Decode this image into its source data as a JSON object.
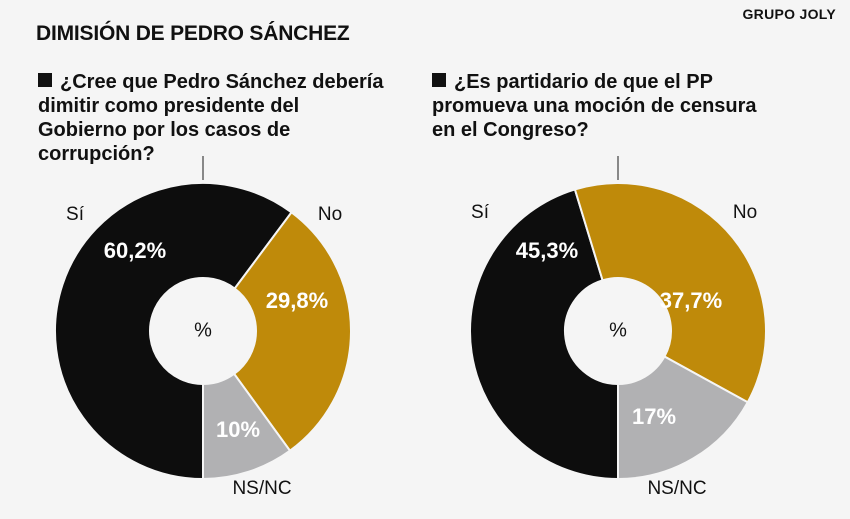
{
  "source": "GRUPO JOLY",
  "title": "DIMISIÓN DE PEDRO SÁNCHEZ",
  "colors": {
    "si": "#0d0d0d",
    "no": "#bf8a0a",
    "nsnc": "#b1b1b3",
    "center": "#f5f5f5"
  },
  "chart_data": [
    {
      "type": "pie",
      "question": "¿Cree que Pedro Sánchez debería dimitir como presidente del Gobierno por los casos de corrupción?",
      "center_label": "%",
      "slices": [
        {
          "category": "Sí",
          "value": 60.2,
          "label": "60,2%",
          "color": "#0d0d0d"
        },
        {
          "category": "No",
          "value": 29.8,
          "label": "29,8%",
          "color": "#bf8a0a"
        },
        {
          "category": "NS/NC",
          "value": 10,
          "label": "10%",
          "color": "#b1b1b3"
        }
      ]
    },
    {
      "type": "pie",
      "question": "¿Es partidario de que el PP promueva una moción de censura en el Congreso?",
      "center_label": "%",
      "slices": [
        {
          "category": "Sí",
          "value": 45.3,
          "label": "45,3%",
          "color": "#0d0d0d"
        },
        {
          "category": "No",
          "value": 37.7,
          "label": "37,7%",
          "color": "#bf8a0a"
        },
        {
          "category": "NS/NC",
          "value": 17,
          "label": "17%",
          "color": "#b1b1b3"
        }
      ]
    }
  ]
}
